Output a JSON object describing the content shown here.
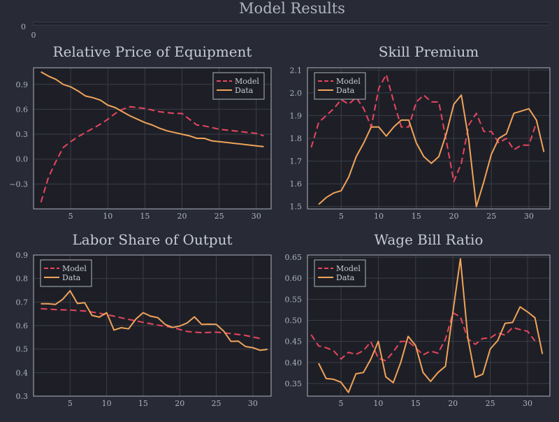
{
  "title": "Model Results",
  "top_strip": {
    "tick_x": "0",
    "tick_y": "0"
  },
  "colors": {
    "background": "#282a36",
    "plot_bg": "#1e1f26",
    "model": "#e8455f",
    "data": "#f0a35a",
    "text": "#c6cbd5",
    "axis": "#aeb4c0",
    "grid": "#3a3d49"
  },
  "chart_data": [
    {
      "type": "line",
      "title": "Relative Price of Equipment",
      "xlim": [
        0,
        32
      ],
      "ylim": [
        -0.6,
        1.1
      ],
      "xticks": [
        5,
        10,
        15,
        20,
        25,
        30
      ],
      "yticks": [
        -0.3,
        0.0,
        0.3,
        0.6,
        0.9
      ],
      "ytick_labels": [
        "−0.3",
        "0.0",
        "0.3",
        "0.6",
        "0.9"
      ],
      "legend": "top-right",
      "series": [
        {
          "name": "Model",
          "style": "dashed",
          "x": [
            1,
            2,
            3,
            4,
            5,
            6,
            7,
            8,
            9,
            10,
            11,
            12,
            13,
            14,
            15,
            16,
            17,
            18,
            19,
            20,
            21,
            22,
            23,
            24,
            25,
            26,
            27,
            28,
            29,
            30,
            31
          ],
          "y": [
            -0.52,
            -0.22,
            -0.03,
            0.14,
            0.21,
            0.27,
            0.32,
            0.37,
            0.42,
            0.48,
            0.55,
            0.6,
            0.63,
            0.62,
            0.61,
            0.59,
            0.57,
            0.56,
            0.55,
            0.55,
            0.48,
            0.41,
            0.4,
            0.38,
            0.36,
            0.35,
            0.34,
            0.33,
            0.32,
            0.31,
            0.28
          ]
        },
        {
          "name": "Data",
          "style": "solid",
          "x": [
            1,
            2,
            3,
            4,
            5,
            6,
            7,
            8,
            9,
            10,
            11,
            12,
            13,
            14,
            15,
            16,
            17,
            18,
            19,
            20,
            21,
            22,
            23,
            24,
            25,
            26,
            27,
            28,
            29,
            30,
            31
          ],
          "y": [
            1.05,
            1.0,
            0.96,
            0.9,
            0.87,
            0.82,
            0.76,
            0.74,
            0.71,
            0.65,
            0.62,
            0.57,
            0.52,
            0.48,
            0.44,
            0.41,
            0.37,
            0.34,
            0.32,
            0.3,
            0.28,
            0.25,
            0.25,
            0.22,
            0.21,
            0.2,
            0.19,
            0.18,
            0.17,
            0.16,
            0.15
          ]
        }
      ]
    },
    {
      "type": "line",
      "title": "Skill Premium",
      "xlim": [
        0.5,
        32.8
      ],
      "ylim": [
        1.49,
        2.11
      ],
      "xticks": [
        5,
        10,
        15,
        20,
        25,
        30
      ],
      "yticks": [
        1.5,
        1.6,
        1.7,
        1.8,
        1.9,
        2.0,
        2.1
      ],
      "ytick_labels": [
        "1.5",
        "1.6",
        "1.7",
        "1.8",
        "1.9",
        "2.0",
        "2.1"
      ],
      "legend": "top-left",
      "series": [
        {
          "name": "Model",
          "style": "dashed",
          "x": [
            1,
            2,
            3,
            4,
            5,
            6,
            7,
            8,
            9,
            10,
            11,
            12,
            13,
            14,
            15,
            16,
            17,
            18,
            19,
            20,
            21,
            22,
            23,
            24,
            25,
            26,
            27,
            28,
            29,
            30,
            31
          ],
          "y": [
            1.76,
            1.87,
            1.9,
            1.93,
            1.97,
            1.95,
            1.98,
            1.93,
            1.85,
            2.02,
            2.08,
            1.96,
            1.85,
            1.85,
            1.96,
            1.99,
            1.96,
            1.96,
            1.79,
            1.61,
            1.69,
            1.86,
            1.91,
            1.83,
            1.83,
            1.78,
            1.8,
            1.75,
            1.77,
            1.77,
            1.87
          ]
        },
        {
          "name": "Data",
          "style": "solid",
          "x": [
            2,
            3,
            4,
            5,
            6,
            7,
            8,
            9,
            10,
            11,
            12,
            13,
            14,
            15,
            16,
            17,
            18,
            19,
            20,
            21,
            22,
            23,
            24,
            25,
            26,
            27,
            28,
            29,
            30,
            31,
            32
          ],
          "y": [
            1.51,
            1.54,
            1.56,
            1.57,
            1.63,
            1.72,
            1.78,
            1.85,
            1.85,
            1.81,
            1.85,
            1.88,
            1.88,
            1.78,
            1.72,
            1.69,
            1.72,
            1.82,
            1.95,
            1.99,
            1.79,
            1.5,
            1.61,
            1.73,
            1.8,
            1.82,
            1.91,
            1.92,
            1.93,
            1.88,
            1.74
          ]
        }
      ]
    },
    {
      "type": "line",
      "title": "Labor Share of Output",
      "xlim": [
        0,
        32.5
      ],
      "ylim": [
        0.3,
        0.9
      ],
      "xticks": [
        5,
        10,
        15,
        20,
        25,
        30
      ],
      "yticks": [
        0.3,
        0.4,
        0.5,
        0.6,
        0.7,
        0.8,
        0.9
      ],
      "ytick_labels": [
        "0.3",
        "0.4",
        "0.5",
        "0.6",
        "0.7",
        "0.8",
        "0.9"
      ],
      "legend": "top-left",
      "series": [
        {
          "name": "Model",
          "style": "dashed",
          "x": [
            1,
            3,
            5,
            7,
            9,
            11,
            13,
            15,
            17,
            19,
            21,
            23,
            25,
            27,
            29,
            31
          ],
          "y": [
            0.672,
            0.668,
            0.666,
            0.662,
            0.653,
            0.64,
            0.626,
            0.614,
            0.602,
            0.592,
            0.575,
            0.57,
            0.572,
            0.566,
            0.558,
            0.545
          ]
        },
        {
          "name": "Data",
          "style": "solid",
          "x": [
            1,
            2,
            3,
            4,
            5,
            6,
            7,
            8,
            9,
            10,
            11,
            12,
            13,
            14,
            15,
            16,
            17,
            18,
            19,
            20,
            21,
            22,
            23,
            24,
            25,
            26,
            27,
            28,
            29,
            30,
            31,
            32
          ],
          "y": [
            0.693,
            0.693,
            0.69,
            0.712,
            0.748,
            0.694,
            0.697,
            0.643,
            0.636,
            0.655,
            0.581,
            0.591,
            0.586,
            0.628,
            0.655,
            0.64,
            0.634,
            0.605,
            0.592,
            0.598,
            0.611,
            0.637,
            0.605,
            0.606,
            0.605,
            0.577,
            0.533,
            0.534,
            0.511,
            0.506,
            0.495,
            0.499
          ]
        }
      ]
    },
    {
      "type": "line",
      "title": "Wage Bill Ratio",
      "xlim": [
        0.5,
        33
      ],
      "ylim": [
        0.32,
        0.655
      ],
      "xticks": [
        5,
        10,
        15,
        20,
        25,
        30
      ],
      "yticks": [
        0.35,
        0.4,
        0.45,
        0.5,
        0.55,
        0.6,
        0.65
      ],
      "ytick_labels": [
        "0.35",
        "0.40",
        "0.45",
        "0.50",
        "0.55",
        "0.60",
        "0.65"
      ],
      "legend": "top-left",
      "series": [
        {
          "name": "Model",
          "style": "dashed",
          "x": [
            1,
            2,
            3,
            4,
            5,
            6,
            7,
            8,
            9,
            10,
            11,
            12,
            13,
            14,
            15,
            16,
            17,
            18,
            19,
            20,
            21,
            22,
            23,
            24,
            25,
            26,
            27,
            28,
            29,
            30,
            31
          ],
          "y": [
            0.466,
            0.439,
            0.435,
            0.428,
            0.408,
            0.424,
            0.419,
            0.428,
            0.449,
            0.41,
            0.404,
            0.425,
            0.45,
            0.45,
            0.435,
            0.418,
            0.427,
            0.422,
            0.455,
            0.518,
            0.508,
            0.456,
            0.443,
            0.457,
            0.458,
            0.47,
            0.465,
            0.483,
            0.478,
            0.474,
            0.451
          ]
        },
        {
          "name": "Data",
          "style": "solid",
          "x": [
            2,
            3,
            4,
            5,
            6,
            7,
            8,
            9,
            10,
            11,
            12,
            13,
            14,
            15,
            16,
            17,
            18,
            19,
            20,
            21,
            22,
            23,
            24,
            25,
            26,
            27,
            28,
            29,
            30,
            31,
            32
          ],
          "y": [
            0.398,
            0.362,
            0.36,
            0.353,
            0.329,
            0.373,
            0.376,
            0.408,
            0.45,
            0.366,
            0.352,
            0.4,
            0.462,
            0.44,
            0.376,
            0.355,
            0.376,
            0.391,
            0.52,
            0.646,
            0.458,
            0.365,
            0.372,
            0.432,
            0.452,
            0.493,
            0.495,
            0.532,
            0.52,
            0.506,
            0.42
          ]
        }
      ]
    }
  ]
}
